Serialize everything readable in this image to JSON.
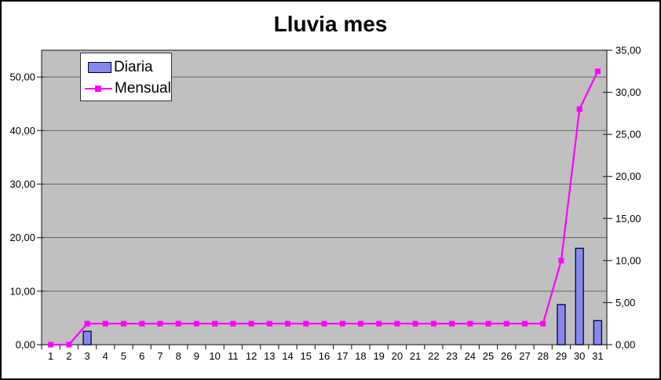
{
  "chart_data": {
    "type": "combo-bar-line",
    "title": "Lluvia mes",
    "categories": [
      "1",
      "2",
      "3",
      "4",
      "5",
      "6",
      "7",
      "8",
      "9",
      "10",
      "11",
      "12",
      "13",
      "14",
      "15",
      "16",
      "17",
      "18",
      "19",
      "20",
      "21",
      "22",
      "23",
      "24",
      "25",
      "26",
      "27",
      "28",
      "29",
      "30",
      "31"
    ],
    "series": [
      {
        "name": "Diaria",
        "type": "bar",
        "axis": "left",
        "values": [
          0,
          0,
          2.5,
          0,
          0,
          0,
          0,
          0,
          0,
          0,
          0,
          0,
          0,
          0,
          0,
          0,
          0,
          0,
          0,
          0,
          0,
          0,
          0,
          0,
          0,
          0,
          0,
          0,
          7.5,
          18,
          4.5
        ]
      },
      {
        "name": "Mensual",
        "type": "line",
        "axis": "right",
        "values": [
          0,
          0,
          2.5,
          2.5,
          2.5,
          2.5,
          2.5,
          2.5,
          2.5,
          2.5,
          2.5,
          2.5,
          2.5,
          2.5,
          2.5,
          2.5,
          2.5,
          2.5,
          2.5,
          2.5,
          2.5,
          2.5,
          2.5,
          2.5,
          2.5,
          2.5,
          2.5,
          2.5,
          10,
          28,
          32.5
        ]
      }
    ],
    "left_axis": {
      "min": 0,
      "max": 55,
      "major": 10,
      "tick_labels": [
        "0,00",
        "10,00",
        "20,00",
        "30,00",
        "40,00",
        "50,00"
      ]
    },
    "right_axis": {
      "min": 0,
      "max": 35,
      "major": 5,
      "tick_labels": [
        "0,00",
        "5,00",
        "10,00",
        "15,00",
        "20,00",
        "25,00",
        "30,00",
        "35,00"
      ]
    },
    "legend": {
      "position": "top-left"
    },
    "grid": "horizontal-major-left-axis",
    "colors": {
      "bar_fill": "#8888EC",
      "bar_border": "#000040",
      "line": "#FF00FF",
      "plot_bg": "#C0C0C0",
      "gridline": "#5f5f5f",
      "axis": "#303030",
      "text": "#000000",
      "background": "#FFFFFF",
      "frame": "#000000"
    }
  }
}
